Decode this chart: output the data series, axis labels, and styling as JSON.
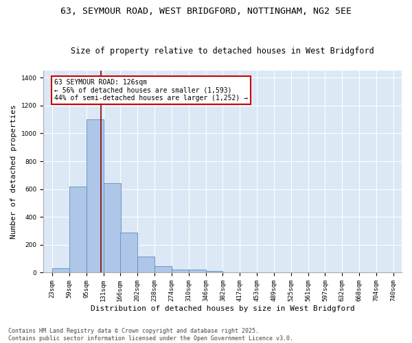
{
  "title_line1": "63, SEYMOUR ROAD, WEST BRIDGFORD, NOTTINGHAM, NG2 5EE",
  "title_line2": "Size of property relative to detached houses in West Bridgford",
  "xlabel": "Distribution of detached houses by size in West Bridgford",
  "ylabel": "Number of detached properties",
  "bin_labels": [
    "23sqm",
    "59sqm",
    "95sqm",
    "131sqm",
    "166sqm",
    "202sqm",
    "238sqm",
    "274sqm",
    "310sqm",
    "346sqm",
    "382sqm",
    "417sqm",
    "453sqm",
    "489sqm",
    "525sqm",
    "561sqm",
    "597sqm",
    "632sqm",
    "668sqm",
    "704sqm",
    "740sqm"
  ],
  "bar_heights": [
    30,
    620,
    1100,
    640,
    290,
    115,
    47,
    20,
    20,
    13,
    0,
    0,
    0,
    0,
    0,
    0,
    0,
    0,
    0,
    0
  ],
  "bar_color": "#aec6e8",
  "bar_edge_color": "#5a8fc2",
  "background_color": "#dce8f5",
  "grid_color": "#ffffff",
  "annotation_box_text": "63 SEYMOUR ROAD: 126sqm\n← 56% of detached houses are smaller (1,593)\n44% of semi-detached houses are larger (1,252) →",
  "red_line_x": 126,
  "ylim": [
    0,
    1450
  ],
  "yticks": [
    0,
    200,
    400,
    600,
    800,
    1000,
    1200,
    1400
  ],
  "bin_edges_sqm": [
    23,
    59,
    95,
    131,
    166,
    202,
    238,
    274,
    310,
    346,
    382,
    417,
    453,
    489,
    525,
    561,
    597,
    632,
    668,
    704,
    740
  ],
  "footer_text": "Contains HM Land Registry data © Crown copyright and database right 2025.\nContains public sector information licensed under the Open Government Licence v3.0.",
  "title1_fontsize": 9.5,
  "title2_fontsize": 8.5,
  "xlabel_fontsize": 8,
  "ylabel_fontsize": 8,
  "tick_fontsize": 6.5,
  "footer_fontsize": 6,
  "annot_fontsize": 7
}
